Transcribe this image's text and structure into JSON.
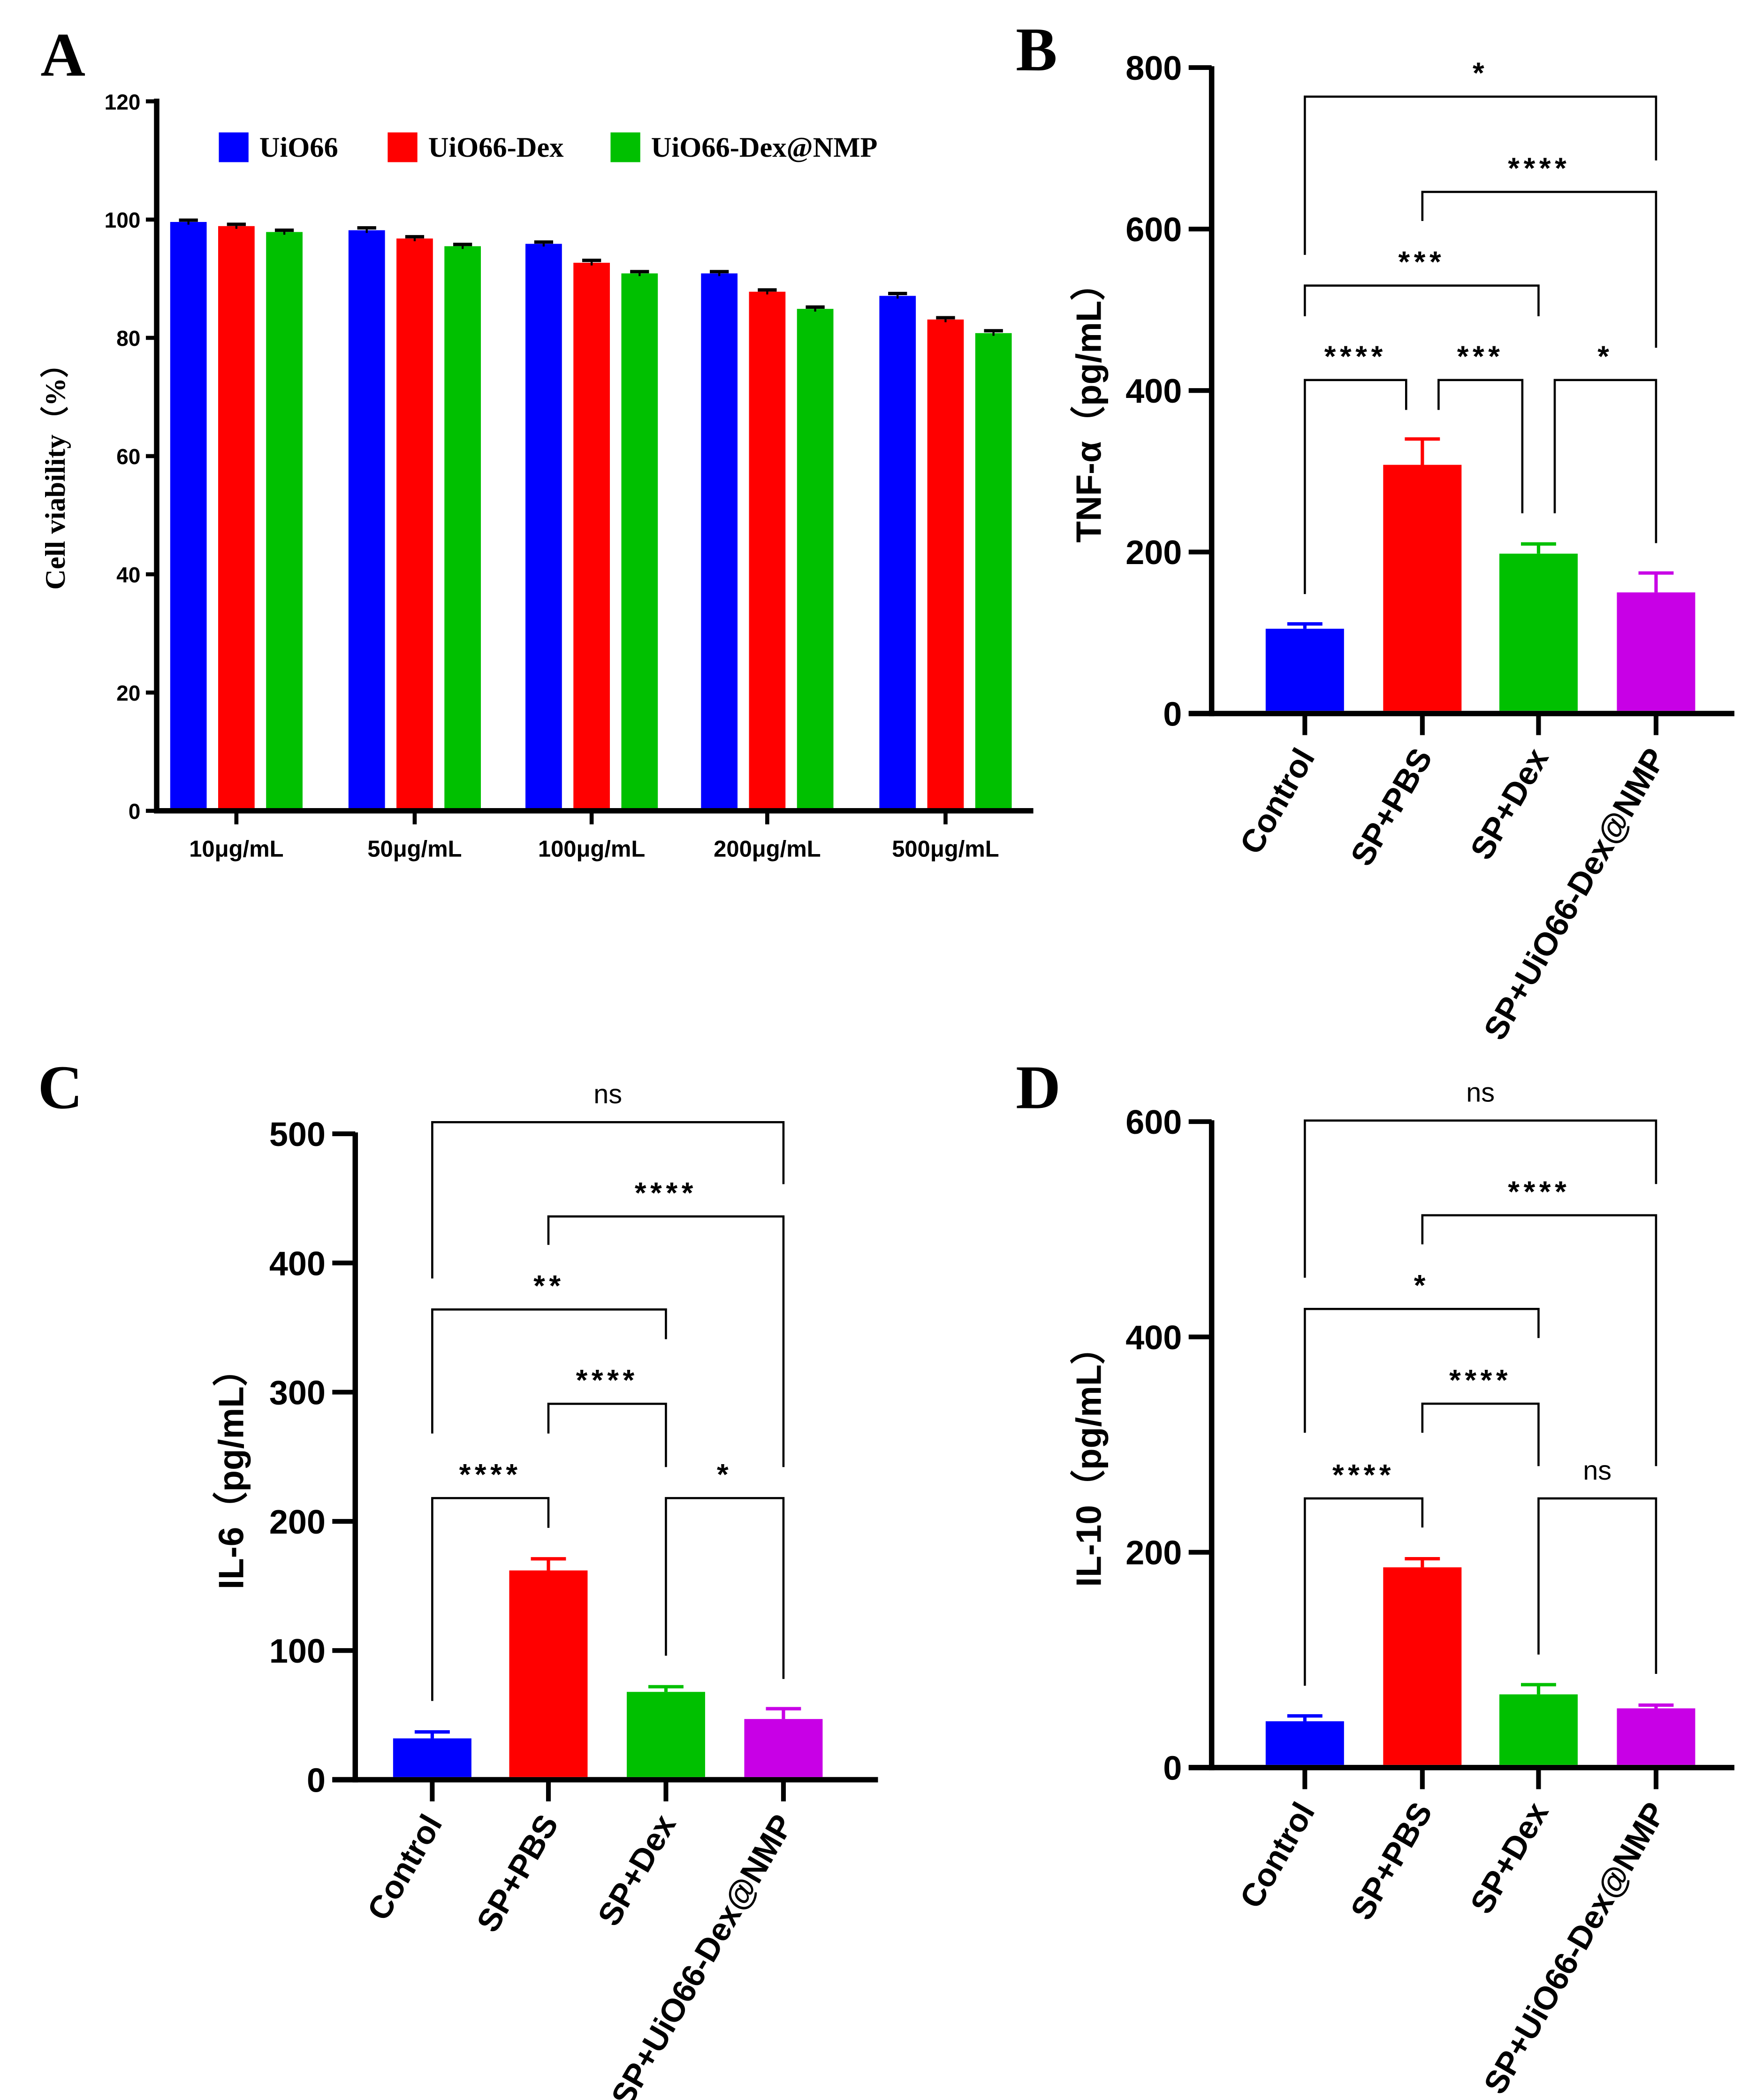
{
  "colors": {
    "blue": "#0000ff",
    "red": "#ff0000",
    "green": "#00c000",
    "purple": "#c800e6",
    "axis": "#000000"
  },
  "chart_data": [
    {
      "id": "A",
      "panel_label": "A",
      "type": "bar",
      "title": "",
      "xlabel": "",
      "ylabel": "Cell viability（%）",
      "ylim": [
        0,
        120
      ],
      "yticks": [
        0,
        20,
        40,
        60,
        80,
        100,
        120
      ],
      "categories": [
        "10μg/mL",
        "50μg/mL",
        "100μg/mL",
        "200μg/mL",
        "500μg/mL"
      ],
      "legend_position": "top",
      "series": [
        {
          "name": "UiO66",
          "color": "#0000ff",
          "values": [
            99.6,
            98.2,
            95.9,
            90.9,
            87.1
          ],
          "errors": [
            0.3,
            0.4,
            0.3,
            0.3,
            0.4
          ]
        },
        {
          "name": "UiO66-Dex",
          "color": "#ff0000",
          "values": [
            98.9,
            96.8,
            92.7,
            87.8,
            83.1
          ],
          "errors": [
            0.3,
            0.3,
            0.4,
            0.3,
            0.3
          ]
        },
        {
          "name": "UiO66-Dex@NMP",
          "color": "#00c000",
          "values": [
            97.9,
            95.5,
            90.9,
            84.9,
            80.8
          ],
          "errors": [
            0.3,
            0.3,
            0.3,
            0.3,
            0.4
          ]
        }
      ],
      "grid": false
    },
    {
      "id": "B",
      "panel_label": "B",
      "type": "bar",
      "title": "",
      "xlabel": "",
      "ylabel": "TNF-α（pg/mL）",
      "ylim": [
        0,
        800
      ],
      "yticks": [
        0,
        200,
        400,
        600,
        800
      ],
      "categories": [
        "Control",
        "SP+PBS",
        "SP+Dex",
        "SP+UiO66-Dex@NMP"
      ],
      "bar_colors": [
        "#0000ff",
        "#ff0000",
        "#00c000",
        "#c800e6"
      ],
      "values": [
        105,
        308,
        198,
        150
      ],
      "errors": [
        6,
        32,
        12,
        24
      ],
      "grid": false,
      "significance": [
        {
          "from": 0,
          "to": 3,
          "label": "*",
          "y": 764,
          "left_end": 568,
          "right_end": 685
        },
        {
          "from": 1,
          "to": 3,
          "label": "****",
          "y": 646,
          "left_end": 610,
          "right_end": 453
        },
        {
          "from": 0,
          "to": 2,
          "label": "***",
          "y": 530,
          "left_end": 492,
          "right_end": 492
        },
        {
          "from": 0,
          "to": 1,
          "label": "****",
          "y": 413,
          "left_end": 148,
          "right_end": 376
        },
        {
          "from": 1,
          "to": 2,
          "label": "***",
          "y": 413,
          "left_end": 376,
          "right_end": 248
        },
        {
          "from": 2,
          "to": 3,
          "label": "*",
          "y": 413,
          "left_end": 248,
          "right_end": 211
        }
      ]
    },
    {
      "id": "C",
      "panel_label": "C",
      "type": "bar",
      "title": "",
      "xlabel": "",
      "ylabel": "IL-6（pg/mL）",
      "ylim": [
        0,
        500
      ],
      "yticks": [
        0,
        100,
        200,
        300,
        400,
        500
      ],
      "categories": [
        "Control",
        "SP+PBS",
        "SP+Dex",
        "SP+UiO66-Dex@NMP"
      ],
      "bar_colors": [
        "#0000ff",
        "#ff0000",
        "#00c000",
        "#c800e6"
      ],
      "values": [
        32,
        162,
        68,
        47
      ],
      "errors": [
        5,
        9,
        4,
        8
      ],
      "grid": false,
      "significance": [
        {
          "from": 0,
          "to": 3,
          "label": "ns",
          "y": 509,
          "left_end": 388,
          "right_end": 461
        },
        {
          "from": 1,
          "to": 3,
          "label": "****",
          "y": 436,
          "left_end": 414,
          "right_end": 242
        },
        {
          "from": 0,
          "to": 2,
          "label": "**",
          "y": 364,
          "left_end": 268,
          "right_end": 341
        },
        {
          "from": 1,
          "to": 2,
          "label": "****",
          "y": 291,
          "left_end": 268,
          "right_end": 242
        },
        {
          "from": 0,
          "to": 1,
          "label": "****",
          "y": 218,
          "left_end": 61,
          "right_end": 195
        },
        {
          "from": 2,
          "to": 3,
          "label": "*",
          "y": 218,
          "left_end": 96,
          "right_end": 78
        }
      ]
    },
    {
      "id": "D",
      "panel_label": "D",
      "type": "bar",
      "title": "",
      "xlabel": "",
      "ylabel": "IL-10（pg/mL）",
      "ylim": [
        0,
        600
      ],
      "yticks": [
        0,
        200,
        400,
        600
      ],
      "categories": [
        "Control",
        "SP+PBS",
        "SP+Dex",
        "SP+UiO66-Dex@NMP"
      ],
      "bar_colors": [
        "#0000ff",
        "#ff0000",
        "#00c000",
        "#c800e6"
      ],
      "values": [
        43,
        186,
        68,
        55
      ],
      "errors": [
        5,
        8,
        9,
        3
      ],
      "grid": false,
      "significance": [
        {
          "from": 0,
          "to": 3,
          "label": "ns",
          "y": 601,
          "left_end": 455,
          "right_end": 542
        },
        {
          "from": 1,
          "to": 3,
          "label": "****",
          "y": 513,
          "left_end": 486,
          "right_end": 280
        },
        {
          "from": 0,
          "to": 2,
          "label": "*",
          "y": 426,
          "left_end": 311,
          "right_end": 399
        },
        {
          "from": 1,
          "to": 2,
          "label": "****",
          "y": 338,
          "left_end": 311,
          "right_end": 280
        },
        {
          "from": 0,
          "to": 1,
          "label": "****",
          "y": 250,
          "left_end": 76,
          "right_end": 223
        },
        {
          "from": 2,
          "to": 3,
          "label": "ns",
          "y": 250,
          "left_end": 105,
          "right_end": 87
        }
      ]
    }
  ]
}
